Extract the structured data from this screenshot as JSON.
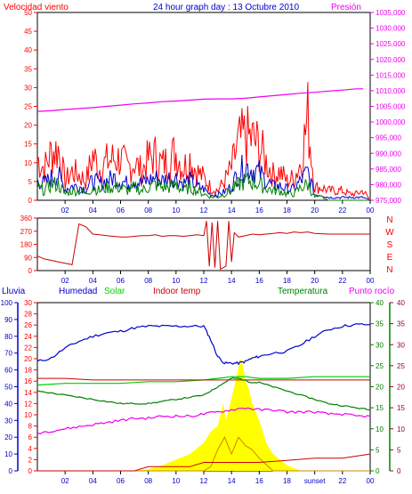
{
  "header": {
    "wind_label": "Velocidad viento",
    "title": "24 hour graph day : 13 Octubre 2010",
    "pressure_label": "Presión"
  },
  "direction_labels": [
    "N",
    "W",
    "S",
    "E",
    "N"
  ],
  "bottom_labels": {
    "rain": "Lluvia",
    "humidity": "Humedad",
    "solar": "Solar",
    "indoor": "Indoor temp",
    "temperature": "Temperatura",
    "dewpoint": "Punto rocío"
  },
  "sunset_label": "sunset",
  "colors": {
    "wind": "#ff0000",
    "wind_avg": "#0000cc",
    "wind_dark": "#008000",
    "pressure": "#ee00ee",
    "direction": "#cc0000",
    "rain": "#0000cc",
    "humidity": "#0000cc",
    "solar": "#ffff00",
    "solar_outline": "#ff8800",
    "indoor": "#cc0000",
    "temperature": "#008000",
    "dewpoint": "#ee00ee",
    "green_axis": "#008000",
    "maroon_axis": "#990033",
    "red_axis": "#ff0000",
    "uv": "#cc8800"
  },
  "chart_data": [
    {
      "type": "line",
      "title": "24 hour graph day : 13 Octubre 2010",
      "x_ticks": [
        "02",
        "04",
        "06",
        "08",
        "10",
        "12",
        "14",
        "16",
        "18",
        "20",
        "22",
        "00"
      ],
      "xlim": [
        0,
        24
      ],
      "y_left_label": "Velocidad viento",
      "y_left_ticks": [
        0,
        5,
        10,
        15,
        20,
        25,
        30,
        35,
        40,
        45,
        50
      ],
      "y_right_label": "Presión",
      "y_right_ticks": [
        975,
        980,
        985,
        990,
        995,
        1000,
        1005,
        1010,
        1015,
        1020,
        1025,
        1030,
        1035
      ],
      "series": [
        {
          "name": "Velocidad viento",
          "axis": "left",
          "style": "gusts",
          "x": [
            0,
            0.5,
            1,
            1.5,
            2,
            2.5,
            3,
            3.5,
            4,
            4.5,
            5,
            5.5,
            6,
            6.5,
            7,
            7.5,
            8,
            8.5,
            9,
            9.5,
            10,
            10.5,
            11,
            11.5,
            12,
            12.5,
            13,
            13.5,
            14,
            14.5,
            15,
            15.5,
            16,
            16.5,
            17,
            17.5,
            18,
            18.5,
            19,
            19.5,
            20,
            20.5,
            21,
            21.5,
            22,
            22.5,
            23,
            23.5,
            24
          ],
          "y": [
            13,
            10,
            15,
            16,
            6,
            9,
            8,
            6,
            14,
            10,
            12,
            13,
            13,
            10,
            12,
            9,
            13,
            14,
            11,
            13,
            15,
            10,
            13,
            9,
            7,
            4,
            3,
            6,
            10,
            18,
            20,
            19,
            17,
            12,
            8,
            9,
            6,
            7,
            12,
            26,
            4,
            4,
            3,
            3,
            3,
            2,
            2,
            3,
            0
          ]
        },
        {
          "x": [
            0,
            0.5,
            1,
            1.5,
            2,
            2.5,
            3,
            3.5,
            4,
            4.5,
            5,
            5.5,
            6,
            6.5,
            7,
            7.5,
            8,
            8.5,
            9,
            9.5,
            10,
            10.5,
            11,
            11.5,
            12,
            12.5,
            13,
            13.5,
            14,
            14.5,
            15,
            15.5,
            16,
            16.5,
            17,
            17.5,
            18,
            18.5,
            19,
            19.5,
            20,
            20.5,
            21,
            21.5,
            22,
            22.5,
            23,
            23.5,
            24
          ],
          "y": [
            7,
            6,
            8,
            9,
            4,
            5,
            5,
            4,
            7,
            6,
            7,
            8,
            7,
            6,
            7,
            6,
            7,
            8,
            7,
            8,
            8,
            6,
            7,
            5,
            4,
            2,
            2,
            3,
            5,
            10,
            12,
            11,
            10,
            7,
            5,
            5,
            4,
            4,
            7,
            10,
            2,
            2,
            1,
            1,
            1,
            1,
            1,
            1,
            0
          ]
        },
        {
          "x": [
            0,
            0.5,
            1,
            1.5,
            2,
            2.5,
            3,
            3.5,
            4,
            4.5,
            5,
            5.5,
            6,
            6.5,
            7,
            7.5,
            8,
            8.5,
            9,
            9.5,
            10,
            10.5,
            11,
            11.5,
            12,
            12.5,
            13,
            13.5,
            14,
            14.5,
            15,
            15.5,
            16,
            16.5,
            17,
            17.5,
            18,
            18.5,
            19,
            19.5,
            20,
            20.5,
            21,
            21.5,
            22,
            22.5,
            23,
            23.5,
            24
          ],
          "y": [
            4,
            3,
            5,
            5,
            2,
            3,
            3,
            2,
            4,
            3,
            4,
            4,
            4,
            3,
            4,
            3,
            4,
            5,
            4,
            4,
            5,
            3,
            4,
            3,
            2,
            1,
            1,
            2,
            3,
            5,
            6,
            6,
            5,
            4,
            3,
            3,
            2,
            2,
            4,
            5,
            1,
            1,
            0,
            0,
            0,
            0,
            0,
            0,
            0
          ]
        },
        {
          "name": "Presión",
          "axis": "right",
          "x": [
            0,
            1,
            2,
            3,
            4,
            5,
            6,
            7,
            8,
            9,
            10,
            11,
            12,
            13,
            14,
            15,
            16,
            17,
            18,
            19,
            20,
            21,
            22,
            23,
            23.5
          ],
          "y": [
            1003.4,
            1003.6,
            1004.0,
            1004.3,
            1004.6,
            1005.0,
            1005.4,
            1005.8,
            1006.1,
            1006.5,
            1006.7,
            1007.0,
            1007.3,
            1007.4,
            1007.4,
            1007.6,
            1008.0,
            1008.4,
            1008.8,
            1009.2,
            1009.5,
            1009.9,
            1010.2,
            1010.6,
            1010.6
          ]
        }
      ]
    },
    {
      "type": "line",
      "x_ticks": [
        "02",
        "04",
        "06",
        "08",
        "10",
        "12",
        "14",
        "16",
        "18",
        "20",
        "22",
        "00"
      ],
      "xlim": [
        0,
        24
      ],
      "y_left_ticks": [
        0,
        90,
        180,
        270,
        360
      ],
      "ylim": [
        0,
        360
      ],
      "series": [
        {
          "name": "direction",
          "x": [
            0,
            0.5,
            1,
            1.5,
            2,
            2.5,
            3,
            3.5,
            4,
            4.5,
            5,
            5.5,
            6,
            6.5,
            7,
            7.5,
            8,
            8.5,
            9,
            9.5,
            10,
            10.5,
            11,
            11.5,
            12,
            12.2,
            12.4,
            12.6,
            12.8,
            13,
            13.2,
            13.4,
            13.6,
            13.8,
            14,
            14.2,
            14.5,
            15,
            15.5,
            16,
            16.5,
            17,
            17.5,
            18,
            18.5,
            19,
            19.5,
            20,
            21,
            22,
            23,
            24
          ],
          "y": [
            100,
            80,
            70,
            60,
            50,
            40,
            320,
            300,
            250,
            245,
            240,
            235,
            230,
            230,
            235,
            240,
            240,
            245,
            235,
            240,
            240,
            235,
            240,
            245,
            240,
            340,
            30,
            330,
            20,
            340,
            10,
            20,
            30,
            340,
            60,
            260,
            230,
            240,
            250,
            245,
            250,
            255,
            260,
            255,
            265,
            260,
            265,
            255,
            250,
            250,
            250,
            250
          ]
        }
      ]
    },
    {
      "type": "line",
      "x_ticks": [
        "02",
        "04",
        "06",
        "08",
        "10",
        "12",
        "14",
        "16",
        "18",
        "sunset",
        "22",
        "00"
      ],
      "xlim": [
        0,
        24
      ],
      "y_rain_ticks": [
        0,
        10,
        20,
        30,
        40,
        50,
        60,
        70,
        80,
        90,
        100
      ],
      "y_humidity_ticks": [
        0,
        2,
        4,
        6,
        8,
        10,
        12,
        14,
        16,
        18,
        20,
        22,
        24,
        26,
        28,
        30
      ],
      "y_temp_ticks": [
        0,
        5,
        10,
        15,
        20,
        25,
        30,
        35,
        40
      ],
      "series": [
        {
          "name": "Humedad",
          "axis": "rain",
          "x": [
            0,
            1,
            2,
            3,
            4,
            5,
            6,
            7,
            8,
            9,
            10,
            11,
            12,
            12.5,
            13,
            13.5,
            14,
            14.5,
            15,
            15.5,
            16,
            17,
            18,
            19,
            20,
            21,
            22,
            23,
            24
          ],
          "y": [
            65,
            67,
            73,
            77,
            80,
            82,
            83,
            85,
            86,
            86,
            86,
            86,
            86,
            78,
            68,
            64,
            64,
            64,
            65,
            67,
            68,
            70,
            71,
            75,
            80,
            84,
            86,
            87,
            87
          ]
        },
        {
          "name": "Solar",
          "axis": "rain",
          "x": [
            0,
            2,
            4,
            6,
            8,
            10,
            12,
            13,
            14,
            15,
            16,
            18,
            20,
            22,
            24
          ],
          "y": [
            51,
            52,
            52,
            52,
            53,
            53,
            54,
            55,
            56,
            56,
            55,
            55,
            56,
            56,
            56
          ]
        },
        {
          "name": "Indoor temp",
          "axis": "rain",
          "x": [
            0,
            2,
            4,
            6,
            8,
            10,
            12,
            14,
            16,
            18,
            20,
            22,
            24
          ],
          "y": [
            55,
            55,
            54,
            54,
            54,
            54,
            54,
            54,
            54,
            54,
            54,
            54,
            54
          ]
        },
        {
          "name": "Temperatura",
          "axis": "temp",
          "x": [
            0,
            1,
            2,
            3,
            4,
            5,
            6,
            7,
            8,
            9,
            10,
            11,
            12,
            12.5,
            13,
            13.5,
            14,
            14.5,
            15,
            15.5,
            16,
            17,
            18,
            19,
            20,
            21,
            22,
            23,
            24
          ],
          "y": [
            19,
            18.5,
            18,
            17.5,
            17,
            16.5,
            16,
            16,
            16,
            16.5,
            17,
            17.5,
            18,
            19,
            20,
            21,
            22,
            22,
            21.5,
            21,
            21,
            20,
            19,
            18,
            17,
            16,
            15.5,
            15,
            14.5
          ]
        },
        {
          "name": "Punto rocío",
          "axis": "temp",
          "x": [
            0,
            1,
            2,
            3,
            4,
            5,
            6,
            7,
            8,
            9,
            10,
            11,
            12,
            13,
            14,
            15,
            16,
            17,
            18,
            19,
            20,
            21,
            22,
            23,
            24
          ],
          "y": [
            9,
            9.5,
            10,
            10.5,
            11,
            11.5,
            12,
            12.5,
            12.5,
            13,
            13,
            13,
            13.5,
            14,
            14.5,
            15,
            14.5,
            14.5,
            14,
            14,
            14,
            13.5,
            13.5,
            13,
            13
          ]
        },
        {
          "name": "UV",
          "axis": "temp",
          "x": [
            0,
            12,
            12.5,
            13,
            13.5,
            14,
            14.5,
            15,
            15.5,
            16,
            17,
            24
          ],
          "y": [
            0,
            0,
            1,
            5,
            8,
            4,
            8,
            6,
            5,
            3,
            0,
            0
          ]
        },
        {
          "name": "Lluvia",
          "axis": "maroon",
          "x": [
            0,
            7,
            8,
            11,
            12,
            14,
            16,
            18,
            20,
            22,
            24
          ],
          "y": [
            0,
            0,
            1,
            1,
            2,
            2,
            2,
            2.5,
            3,
            3,
            4
          ]
        }
      ],
      "solar_area": {
        "x": [
          0,
          7,
          8,
          9,
          10,
          11,
          11.5,
          12,
          12.5,
          13,
          13.2,
          13.4,
          13.6,
          13.8,
          14,
          14.2,
          14.4,
          14.6,
          14.8,
          15,
          15.2,
          15.5,
          16,
          16.5,
          17,
          18,
          19,
          24
        ],
        "y": [
          0,
          0,
          0.3,
          1,
          2,
          3,
          4,
          5,
          7,
          8,
          10,
          12,
          9,
          11,
          13,
          15,
          17,
          20,
          19,
          16,
          15,
          12,
          9,
          5,
          3,
          1,
          0,
          0
        ]
      }
    }
  ]
}
